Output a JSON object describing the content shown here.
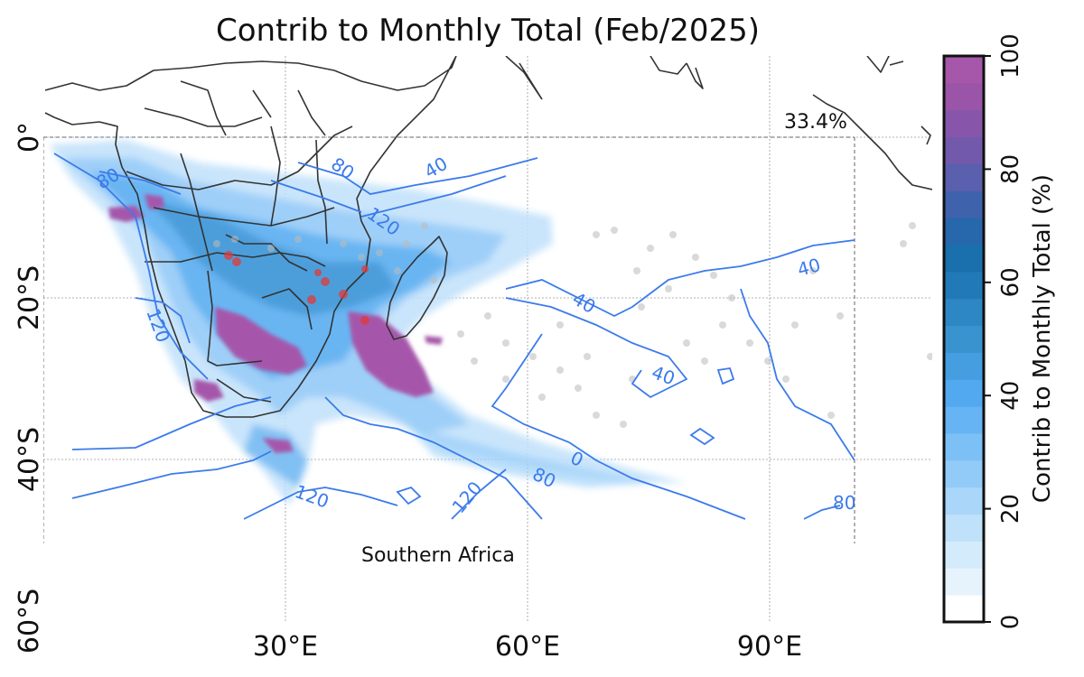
{
  "title": "Contrib to Monthly Total (Feb/2025)",
  "region_label": "Southern Africa",
  "percent_label": "33.4%",
  "lat_labels": [
    "0°",
    "20°S",
    "40°S",
    "60°S"
  ],
  "lon_labels": [
    "30°E",
    "60°E",
    "90°E"
  ],
  "contour_labels": [
    "80",
    "40",
    "120",
    "40",
    "80",
    "40",
    "40",
    "120",
    "120",
    "80",
    "0",
    "80",
    "80"
  ],
  "colorbar": {
    "title": "Contrib to Monthly Total (%)",
    "ticks": [
      "0",
      "20",
      "40",
      "60",
      "80",
      "100"
    ],
    "min": 0,
    "max": 100,
    "levels": 20,
    "colors_low_to_high": [
      "#ffffff",
      "#e6f3fd",
      "#d4ebfb",
      "#bfe1fa",
      "#a9d6f9",
      "#93cbf8",
      "#7dc0f6",
      "#66b4f3",
      "#52a9ef",
      "#449edf",
      "#3993cf",
      "#2d87c4",
      "#2179b8",
      "#1a6fad",
      "#2767ab",
      "#3f62ad",
      "#5a5fae",
      "#7259ab",
      "#8756aa",
      "#9a54a8",
      "#a657aa"
    ]
  },
  "legend_colors": {
    "contour": "#3b7bea",
    "coast": "#333333",
    "marker_red": "#e03a3a",
    "marker_gray": "#bbbbbb"
  }
}
